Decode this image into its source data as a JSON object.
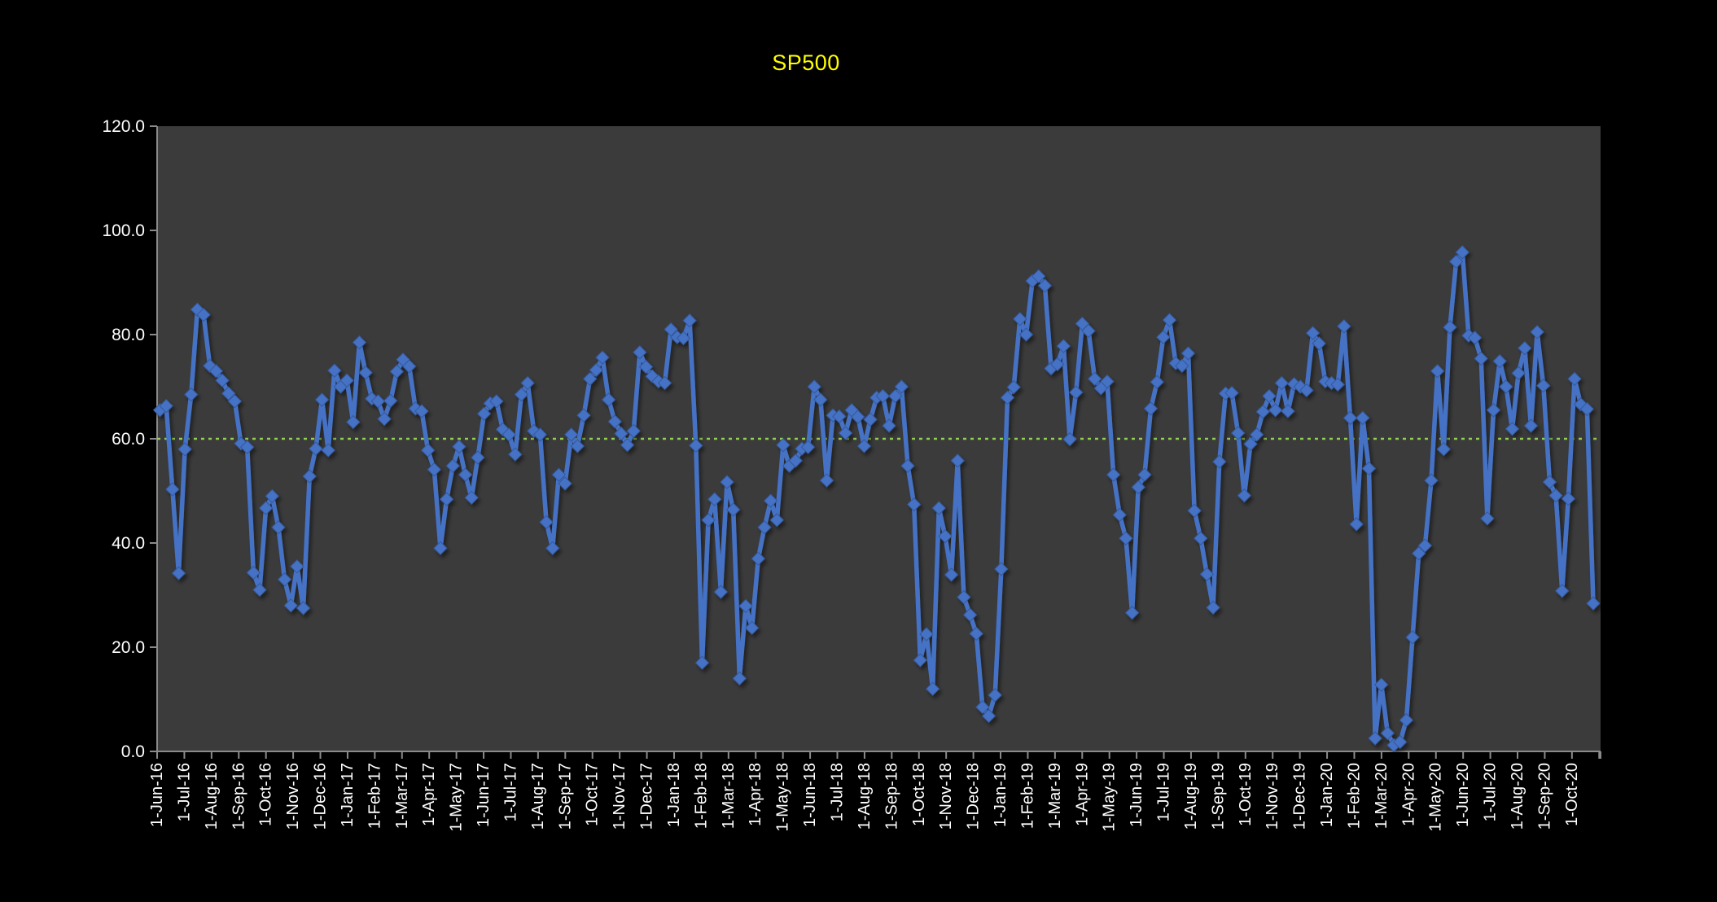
{
  "window": {
    "background_color": "#000000"
  },
  "chart": {
    "title": "SP500",
    "title_color": "#FFFF00"
  },
  "chart_data": {
    "type": "line",
    "title": "SP500",
    "series_name": "SP500",
    "legend": false,
    "grid": false,
    "plot_background": "#3B3B3B",
    "page_background": "#000000",
    "line_color": "#4472C4",
    "marker_shape": "diamond",
    "axis_text_color": "#FFFFFF",
    "axis_line_color": "#8A8A8A",
    "reference_line": {
      "value": 60.0,
      "color": "#92D050",
      "style": "dotted"
    },
    "ylim": [
      0,
      120
    ],
    "y_tick_step": 20,
    "y_tick_labels": [
      "0.0",
      "20.0",
      "40.0",
      "60.0",
      "80.0",
      "100.0",
      "120.0"
    ],
    "x_labels": [
      "1-Jun-16",
      "1-Jul-16",
      "1-Aug-16",
      "1-Sep-16",
      "1-Oct-16",
      "1-Nov-16",
      "1-Dec-16",
      "1-Jan-17",
      "1-Feb-17",
      "1-Mar-17",
      "1-Apr-17",
      "1-May-17",
      "1-Jun-17",
      "1-Jul-17",
      "1-Aug-17",
      "1-Sep-17",
      "1-Oct-17",
      "1-Nov-17",
      "1-Dec-17",
      "1-Jan-18",
      "1-Feb-18",
      "1-Mar-18",
      "1-Apr-18",
      "1-May-18",
      "1-Jun-18",
      "1-Jul-18",
      "1-Aug-18",
      "1-Sep-18",
      "1-Oct-18",
      "1-Nov-18",
      "1-Dec-18",
      "1-Jan-19",
      "1-Feb-19",
      "1-Mar-19",
      "1-Apr-19",
      "1-May-19",
      "1-Jun-19",
      "1-Jul-19",
      "1-Aug-19",
      "1-Sep-19",
      "1-Oct-19",
      "1-Nov-19",
      "1-Dec-19",
      "1-Jan-20",
      "1-Feb-20",
      "1-Mar-20",
      "1-Apr-20",
      "1-May-20",
      "1-Jun-20",
      "1-Jul-20",
      "1-Aug-20",
      "1-Sep-20",
      "1-Oct-20"
    ],
    "values": [
      65.5,
      66.3,
      50.3,
      34.2,
      58,
      68.5,
      84.8,
      83.8,
      74,
      73,
      71.2,
      68.7,
      67.2,
      59.1,
      58.4,
      34.3,
      31,
      46.7,
      49,
      43,
      33,
      28,
      35.5,
      27.5,
      52.8,
      58.1,
      67.5,
      57.8,
      73.1,
      70,
      71.2,
      63.2,
      78.5,
      72.7,
      67.7,
      67.2,
      63.8,
      67.3,
      72.9,
      75.2,
      73.9,
      65.8,
      65.3,
      57.8,
      54.1,
      39,
      48.4,
      54.8,
      58.5,
      53.1,
      48.7,
      56.4,
      64.8,
      66.8,
      67.2,
      61.8,
      60.8,
      57,
      68.5,
      70.7,
      61.5,
      60.8,
      44,
      39,
      53.1,
      51.4,
      60.8,
      58.6,
      64.5,
      71.5,
      73.2,
      75.6,
      67.5,
      63.3,
      61,
      58.8,
      61.5,
      76.6,
      73.8,
      72,
      71,
      70.7,
      81,
      79.5,
      79.3,
      82.7,
      58.7,
      17,
      44.4,
      48.4,
      30.6,
      51.7,
      46.4,
      14,
      27.9,
      23.7,
      37,
      43,
      48.1,
      44.4,
      58.8,
      54.8,
      55.8,
      58.1,
      58.4,
      70,
      67.5,
      52,
      64.5,
      64.3,
      61.1,
      65.5,
      64.2,
      58.6,
      63.7,
      67.9,
      68.2,
      62.5,
      68.2,
      70,
      54.8,
      47.4,
      17.5,
      22.5,
      12,
      46.7,
      41.3,
      33.9,
      55.8,
      29.6,
      26.2,
      22.6,
      8.5,
      6.8,
      10.8,
      35,
      67.9,
      69.9,
      83,
      80,
      90.3,
      91.2,
      89.4,
      73.5,
      74.3,
      77.8,
      59.9,
      68.9,
      82.1,
      80.7,
      71.5,
      69.7,
      71,
      53.1,
      45.4,
      40.9,
      26.6,
      50.7,
      53.1,
      65.8,
      70.9,
      79.5,
      82.8,
      74.5,
      74,
      76.4,
      46.2,
      40.9,
      34,
      27.6,
      55.6,
      68.7,
      68.8,
      61.1,
      49.1,
      59,
      60.8,
      65.2,
      68.2,
      65.5,
      70.7,
      65.3,
      70.5,
      70,
      69.3,
      80.3,
      78.3,
      71,
      70.7,
      70.4,
      81.6,
      64,
      43.6,
      64,
      54.3,
      2.5,
      12.8,
      3.5,
      1.2,
      1.8,
      6,
      21.9,
      38,
      39.5,
      52,
      73,
      58,
      81.4,
      94,
      95.8,
      79.8,
      79.4,
      75.4,
      44.7,
      65.5,
      74.9,
      70,
      61.9,
      72.6,
      77.4,
      62.5,
      80.5,
      70.2,
      51.7,
      49.1,
      30.8,
      48.5,
      71.5,
      66.6,
      65.7,
      28.4
    ]
  }
}
